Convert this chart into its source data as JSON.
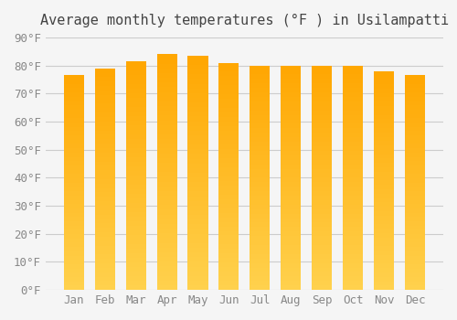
{
  "title": "Average monthly temperatures (°F ) in Usilampatti",
  "months": [
    "Jan",
    "Feb",
    "Mar",
    "Apr",
    "May",
    "Jun",
    "Jul",
    "Aug",
    "Sep",
    "Oct",
    "Nov",
    "Dec"
  ],
  "values": [
    76.5,
    79.0,
    81.5,
    84.0,
    83.5,
    81.0,
    80.0,
    80.0,
    80.0,
    80.0,
    78.0,
    76.5
  ],
  "ylim": [
    0,
    90
  ],
  "yticks": [
    0,
    10,
    20,
    30,
    40,
    50,
    60,
    70,
    80,
    90
  ],
  "bar_color_top": "#FFA500",
  "bar_color_bottom": "#FFD080",
  "background_color": "#f5f5f5",
  "grid_color": "#cccccc",
  "title_fontsize": 11,
  "tick_fontsize": 9,
  "title_font": "monospace",
  "tick_font": "monospace"
}
